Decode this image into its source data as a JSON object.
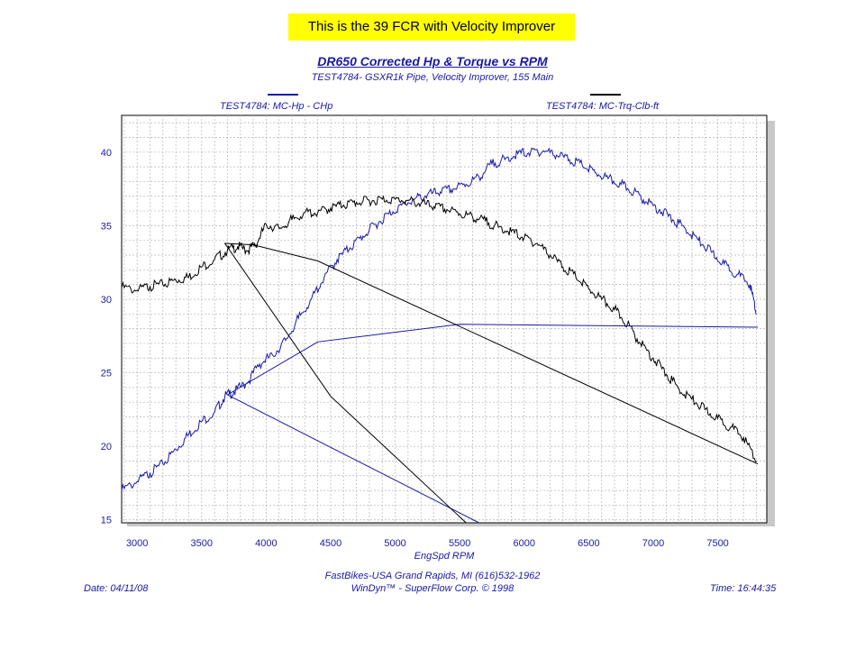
{
  "banner": "This is the 39 FCR with Velocity Improver",
  "title": "DR650 Corrected Hp & Torque vs RPM",
  "subtitle": "TEST4784- GSXR1k Pipe, Velocity Improver, 155 Main",
  "legend": {
    "hp_label": "TEST4784: MC-Hp - CHp",
    "torque_label": "TEST4784: MC-Trq-Clb-ft",
    "hp_color": "#1a1aa6",
    "torque_color": "#000000"
  },
  "footer": {
    "shop": "FastBikes-USA Grand Rapids, MI (616)532-1962",
    "software": "WinDyn™ - SuperFlow Corp. © 1998",
    "date": "Date: 04/11/08",
    "time": "Time: 16:44:35"
  },
  "chart_data": {
    "type": "line",
    "xlabel": "EngSpd  RPM",
    "xlim": [
      2880,
      7880
    ],
    "ylim": [
      14.8,
      42.5
    ],
    "x_ticks": [
      3000,
      3500,
      4000,
      4500,
      5000,
      5500,
      6000,
      6500,
      7000,
      7500
    ],
    "y_ticks": [
      15,
      20,
      25,
      30,
      35,
      40
    ],
    "grid": true,
    "series": [
      {
        "name": "TEST4784: MC-Hp - CHp",
        "color": "#1a1aa6",
        "x": [
          2880,
          3000,
          3100,
          3200,
          3300,
          3400,
          3500,
          3600,
          3680,
          3750,
          3850,
          3950,
          4050,
          4150,
          4250,
          4350,
          4450,
          4550,
          4650,
          4750,
          4850,
          4950,
          5050,
          5150,
          5250,
          5350,
          5450,
          5550,
          5650,
          5750,
          5850,
          5950,
          6050,
          6150,
          6250,
          6350,
          6450,
          6550,
          6650,
          6750,
          6850,
          6950,
          7050,
          7150,
          7250,
          7350,
          7450,
          7550,
          7650,
          7750,
          7800
        ],
        "y": [
          17.0,
          17.6,
          18.2,
          18.8,
          19.8,
          20.8,
          21.7,
          22.3,
          23.4,
          23.7,
          24.3,
          25.6,
          26.2,
          27.2,
          28.7,
          30.0,
          31.5,
          32.7,
          33.5,
          34.3,
          35.1,
          35.8,
          36.4,
          36.8,
          37.1,
          37.3,
          37.5,
          37.8,
          38.3,
          39.2,
          39.5,
          39.9,
          40.0,
          40.1,
          39.8,
          39.5,
          39.1,
          38.6,
          38.2,
          37.8,
          37.3,
          36.6,
          36.1,
          35.4,
          34.8,
          34.0,
          33.2,
          32.4,
          31.7,
          31.0,
          29.0
        ]
      },
      {
        "name": "TEST4784: MC-Trq-Clb-ft",
        "color": "#000000",
        "x": [
          2880,
          3000,
          3100,
          3200,
          3300,
          3400,
          3500,
          3600,
          3700,
          3780,
          3850,
          3920,
          4000,
          4100,
          4200,
          4300,
          4400,
          4500,
          4600,
          4700,
          4800,
          4900,
          5000,
          5100,
          5200,
          5300,
          5400,
          5500,
          5600,
          5700,
          5800,
          5900,
          6000,
          6100,
          6200,
          6300,
          6400,
          6500,
          6600,
          6700,
          6800,
          6900,
          7000,
          7100,
          7200,
          7300,
          7400,
          7500,
          7600,
          7700,
          7800
        ],
        "y": [
          30.8,
          30.6,
          30.9,
          31.0,
          31.3,
          31.5,
          32.2,
          32.7,
          33.3,
          33.6,
          33.3,
          33.7,
          35.1,
          34.8,
          35.4,
          35.9,
          35.9,
          36.2,
          36.4,
          36.6,
          36.7,
          36.8,
          36.8,
          36.7,
          36.5,
          36.3,
          36.1,
          35.8,
          35.6,
          35.3,
          34.9,
          34.6,
          34.2,
          33.8,
          33.0,
          32.2,
          31.5,
          30.7,
          30.0,
          29.3,
          28.3,
          27.0,
          26.0,
          24.9,
          23.9,
          23.2,
          22.5,
          21.9,
          21.3,
          20.6,
          19.0
        ]
      }
    ],
    "return_lines": [
      {
        "series": "TEST4784: MC-Hp - CHp",
        "x": [
          7810,
          5500,
          4400,
          3700,
          5650
        ],
        "y": [
          28.1,
          28.3,
          27.1,
          23.5,
          14.8
        ]
      },
      {
        "series": "TEST4784: MC-Trq-Clb-ft",
        "x": [
          7810,
          4400,
          3900,
          3680,
          4500,
          5550
        ],
        "y": [
          18.8,
          32.6,
          33.7,
          33.8,
          23.4,
          14.8
        ]
      }
    ]
  }
}
